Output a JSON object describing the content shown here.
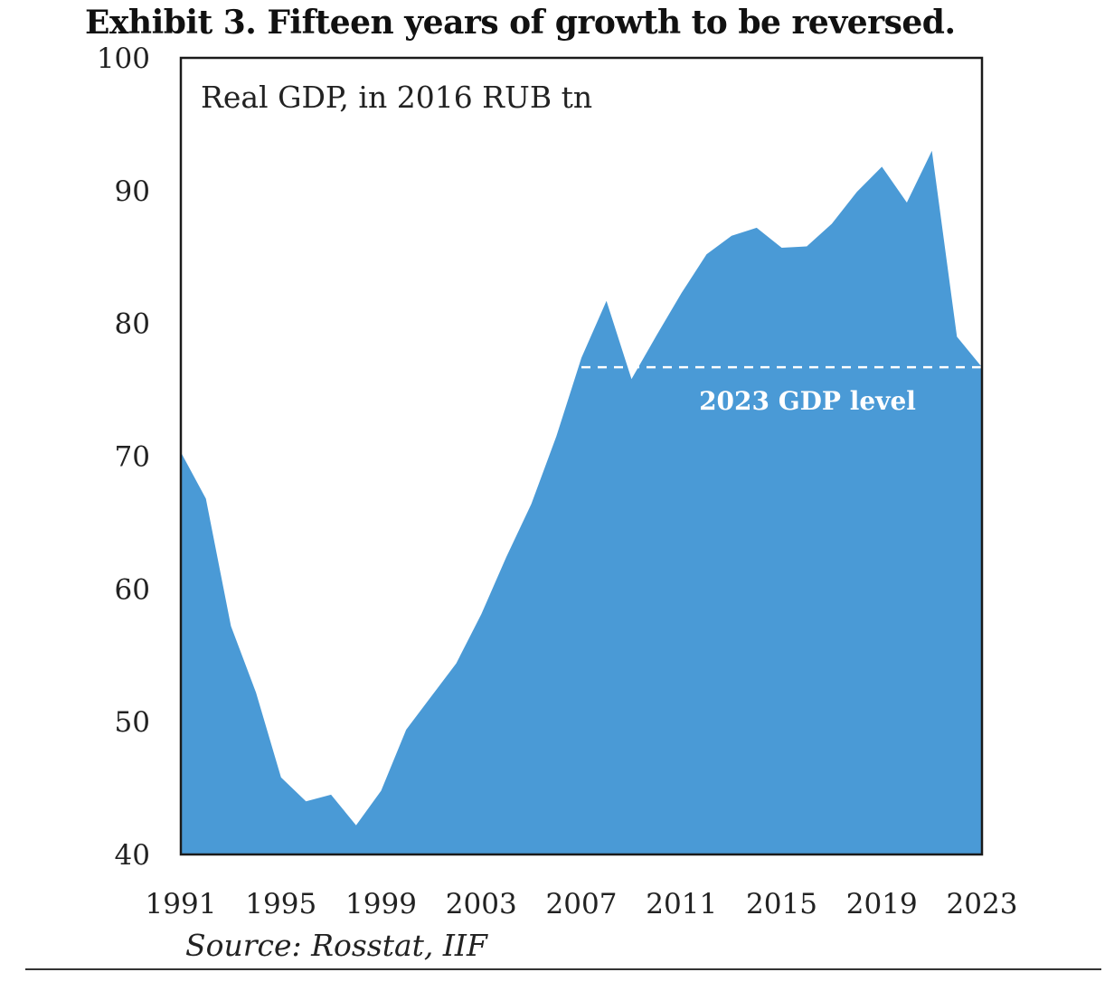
{
  "chart_data": {
    "type": "area",
    "title": "Exhibit 3. Fifteen years of growth to be reversed.",
    "subtitle": "Real GDP, in 2016 RUB tn",
    "source": "Source: Rosstat, IIF",
    "x": [
      1991,
      1992,
      1993,
      1994,
      1995,
      1996,
      1997,
      1998,
      1999,
      2000,
      2001,
      2002,
      2003,
      2004,
      2005,
      2006,
      2007,
      2008,
      2009,
      2010,
      2011,
      2012,
      2013,
      2014,
      2015,
      2016,
      2017,
      2018,
      2019,
      2020,
      2021,
      2022,
      2023
    ],
    "values": [
      70.3,
      66.8,
      57.2,
      52.2,
      45.8,
      44.0,
      44.5,
      42.2,
      44.8,
      49.4,
      51.9,
      54.4,
      58.1,
      62.4,
      66.4,
      71.5,
      77.4,
      81.7,
      75.8,
      79.1,
      82.3,
      85.2,
      86.6,
      87.2,
      85.7,
      85.8,
      87.5,
      89.9,
      91.8,
      89.1,
      93.0,
      79.0,
      76.7
    ],
    "xticks": [
      "1991",
      "1995",
      "1999",
      "2003",
      "2007",
      "2011",
      "2015",
      "2019",
      "2023"
    ],
    "yticks": [
      "40",
      "50",
      "60",
      "70",
      "80",
      "90",
      "100"
    ],
    "ylim": [
      40,
      100
    ],
    "xlim": [
      1991,
      2023
    ],
    "reference_line": {
      "label": "2023 GDP level",
      "value": 76.7,
      "x_start": 2007,
      "x_end": 2023
    },
    "colors": {
      "area": "#4a9ad6",
      "reference_line": "#ffffff",
      "frame": "#1a1a1a"
    },
    "grid": false,
    "legend": "none"
  }
}
